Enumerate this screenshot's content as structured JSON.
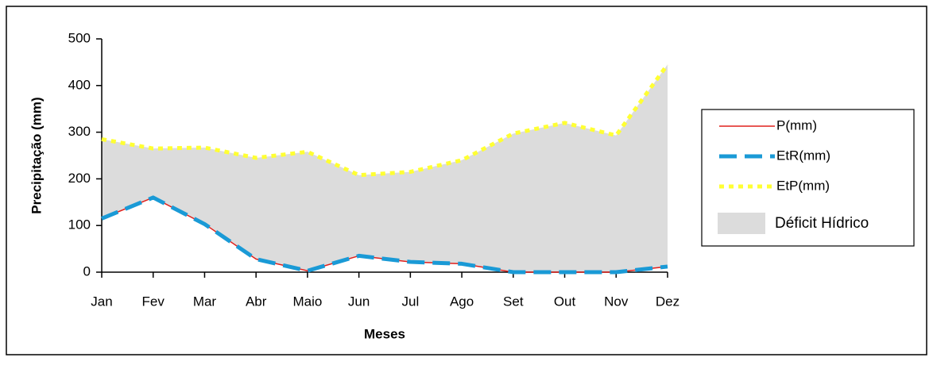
{
  "chart_data": {
    "type": "line",
    "x_label": "Meses",
    "y_label": "Precipitação (mm)",
    "categories": [
      "Jan",
      "Fev",
      "Mar",
      "Abr",
      "Maio",
      "Jun",
      "Jul",
      "Ago",
      "Set",
      "Out",
      "Nov",
      "Dez"
    ],
    "series": [
      {
        "name": "P(mm)",
        "color": "#e0201c",
        "values": [
          115,
          160,
          103,
          28,
          3,
          35,
          22,
          18,
          0,
          0,
          0,
          12
        ]
      },
      {
        "name": "EtR(mm)",
        "color": "#1a9ad6",
        "values": [
          115,
          160,
          103,
          28,
          3,
          35,
          22,
          18,
          0,
          0,
          0,
          12
        ]
      },
      {
        "name": "EtP(mm)",
        "color": "#ffff33",
        "values": [
          285,
          265,
          267,
          245,
          258,
          208,
          215,
          240,
          297,
          320,
          293,
          445
        ]
      }
    ],
    "deficit": {
      "name": "Déficit Hídrico",
      "color": "#dcdcdc"
    },
    "ylim": [
      0,
      500
    ],
    "yticks": [
      0,
      100,
      200,
      300,
      400,
      500
    ]
  }
}
